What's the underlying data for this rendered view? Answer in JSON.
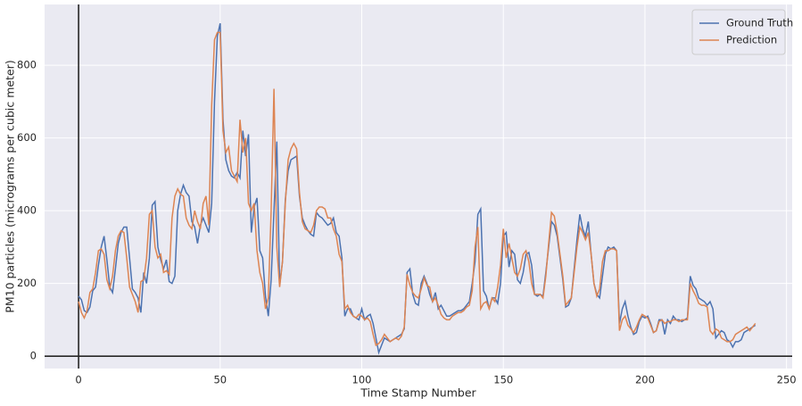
{
  "chart_data": {
    "type": "line",
    "x_label": "Time Stamp Number",
    "y_label": "PM10 particles (micrograms per cubic meter)",
    "x": [
      0,
      1,
      2,
      3,
      4,
      5,
      6,
      7,
      8,
      9,
      10,
      11,
      12,
      13,
      14,
      15,
      16,
      17,
      18,
      19,
      20,
      21,
      22,
      23,
      24,
      25,
      26,
      27,
      28,
      29,
      30,
      31,
      32,
      33,
      34,
      35,
      36,
      37,
      38,
      39,
      40,
      41,
      42,
      43,
      44,
      45,
      46,
      47,
      48,
      49,
      50,
      51,
      52,
      53,
      54,
      55,
      56,
      57,
      58,
      59,
      60,
      61,
      62,
      63,
      64,
      65,
      66,
      67,
      68,
      69,
      70,
      71,
      72,
      73,
      74,
      75,
      76,
      77,
      78,
      79,
      80,
      81,
      82,
      83,
      84,
      85,
      86,
      87,
      88,
      89,
      90,
      91,
      92,
      93,
      94,
      95,
      96,
      97,
      98,
      99,
      100,
      101,
      102,
      103,
      104,
      105,
      106,
      107,
      108,
      109,
      110,
      111,
      112,
      113,
      114,
      115,
      116,
      117,
      118,
      119,
      120,
      121,
      122,
      123,
      124,
      125,
      126,
      127,
      128,
      129,
      130,
      131,
      132,
      133,
      134,
      135,
      136,
      137,
      138,
      139,
      140,
      141,
      142,
      143,
      144,
      145,
      146,
      147,
      148,
      149,
      150,
      151,
      152,
      153,
      154,
      155,
      156,
      157,
      158,
      159,
      160,
      161,
      162,
      163,
      164,
      165,
      166,
      167,
      168,
      169,
      170,
      171,
      172,
      173,
      174,
      175,
      176,
      177,
      178,
      179,
      180,
      181,
      182,
      183,
      184,
      185,
      186,
      187,
      188,
      189,
      190,
      191,
      192,
      193,
      194,
      195,
      196,
      197,
      198,
      199,
      200,
      201,
      202,
      203,
      204,
      205,
      206,
      207,
      208,
      209,
      210,
      211,
      212,
      213,
      214,
      215,
      216,
      217,
      218,
      219,
      220,
      221,
      222,
      223,
      224,
      225,
      226,
      227,
      228,
      229,
      230,
      231,
      232,
      233,
      234,
      235,
      236,
      237,
      238,
      239
    ],
    "series": [
      {
        "name": "Ground Truth",
        "color": "#4c72b0",
        "values": [
          165,
          155,
          125,
          120,
          135,
          180,
          190,
          250,
          300,
          330,
          265,
          190,
          175,
          240,
          310,
          340,
          355,
          355,
          270,
          185,
          175,
          160,
          120,
          230,
          200,
          270,
          415,
          425,
          300,
          265,
          240,
          265,
          205,
          200,
          220,
          400,
          445,
          470,
          450,
          440,
          370,
          355,
          310,
          360,
          380,
          360,
          340,
          420,
          700,
          880,
          915,
          650,
          540,
          510,
          495,
          490,
          505,
          490,
          620,
          550,
          610,
          340,
          410,
          435,
          290,
          270,
          165,
          110,
          210,
          400,
          590,
          195,
          260,
          430,
          510,
          540,
          545,
          550,
          440,
          380,
          360,
          345,
          335,
          330,
          395,
          385,
          380,
          370,
          360,
          365,
          380,
          340,
          330,
          270,
          110,
          130,
          130,
          110,
          105,
          100,
          130,
          100,
          110,
          115,
          90,
          50,
          10,
          30,
          50,
          45,
          40,
          45,
          50,
          55,
          60,
          75,
          230,
          240,
          170,
          145,
          140,
          200,
          220,
          200,
          170,
          150,
          175,
          130,
          140,
          125,
          110,
          110,
          115,
          120,
          125,
          125,
          130,
          140,
          150,
          200,
          260,
          390,
          405,
          180,
          165,
          130,
          160,
          160,
          145,
          200,
          330,
          340,
          245,
          290,
          280,
          210,
          200,
          230,
          280,
          285,
          250,
          170,
          165,
          170,
          165,
          230,
          300,
          370,
          360,
          330,
          270,
          210,
          135,
          140,
          160,
          240,
          320,
          390,
          350,
          330,
          370,
          280,
          200,
          170,
          160,
          220,
          280,
          300,
          295,
          300,
          290,
          90,
          130,
          150,
          110,
          80,
          60,
          65,
          95,
          110,
          105,
          110,
          90,
          65,
          70,
          100,
          100,
          60,
          100,
          90,
          110,
          100,
          100,
          95,
          100,
          105,
          220,
          195,
          185,
          160,
          155,
          150,
          140,
          150,
          130,
          50,
          60,
          70,
          65,
          45,
          40,
          25,
          40,
          40,
          45,
          65,
          70,
          75,
          80,
          85
        ]
      },
      {
        "name": "Prediction",
        "color": "#dd8452",
        "values": [
          150,
          120,
          105,
          125,
          175,
          185,
          230,
          290,
          295,
          280,
          210,
          185,
          220,
          290,
          330,
          345,
          340,
          270,
          190,
          170,
          150,
          120,
          205,
          210,
          270,
          390,
          400,
          300,
          270,
          280,
          230,
          235,
          225,
          380,
          440,
          460,
          445,
          440,
          380,
          360,
          350,
          400,
          370,
          350,
          420,
          440,
          360,
          690,
          870,
          890,
          890,
          620,
          560,
          575,
          510,
          495,
          480,
          650,
          560,
          600,
          420,
          400,
          420,
          290,
          230,
          200,
          130,
          160,
          400,
          735,
          300,
          190,
          260,
          420,
          540,
          570,
          585,
          570,
          450,
          370,
          350,
          345,
          340,
          360,
          400,
          410,
          410,
          405,
          380,
          380,
          350,
          330,
          280,
          260,
          130,
          140,
          120,
          110,
          105,
          115,
          110,
          100,
          105,
          95,
          60,
          30,
          35,
          45,
          60,
          50,
          40,
          45,
          50,
          45,
          55,
          80,
          225,
          195,
          175,
          165,
          160,
          185,
          215,
          195,
          190,
          150,
          160,
          140,
          115,
          105,
          100,
          100,
          110,
          115,
          120,
          120,
          125,
          135,
          140,
          180,
          300,
          355,
          130,
          145,
          150,
          130,
          160,
          150,
          190,
          250,
          350,
          270,
          310,
          270,
          230,
          220,
          240,
          280,
          290,
          260,
          200,
          170,
          170,
          170,
          160,
          220,
          310,
          395,
          385,
          340,
          280,
          220,
          140,
          150,
          160,
          230,
          300,
          355,
          340,
          320,
          340,
          280,
          200,
          165,
          185,
          260,
          290,
          290,
          295,
          295,
          290,
          70,
          100,
          110,
          85,
          75,
          65,
          80,
          100,
          115,
          110,
          105,
          85,
          65,
          70,
          95,
          100,
          90,
          95,
          95,
          100,
          100,
          95,
          100,
          100,
          100,
          200,
          180,
          165,
          145,
          140,
          140,
          135,
          70,
          60,
          75,
          70,
          50,
          45,
          40,
          40,
          45,
          60,
          65,
          70,
          75,
          80,
          70,
          80,
          90
        ]
      }
    ],
    "xlim": [
      -12,
      252
    ],
    "xticks": [
      0,
      50,
      100,
      150,
      200,
      250
    ],
    "ylim": [
      -34,
      967
    ],
    "yticks": [
      0,
      200,
      400,
      600,
      800
    ],
    "grid": true,
    "legend": "upper right"
  }
}
